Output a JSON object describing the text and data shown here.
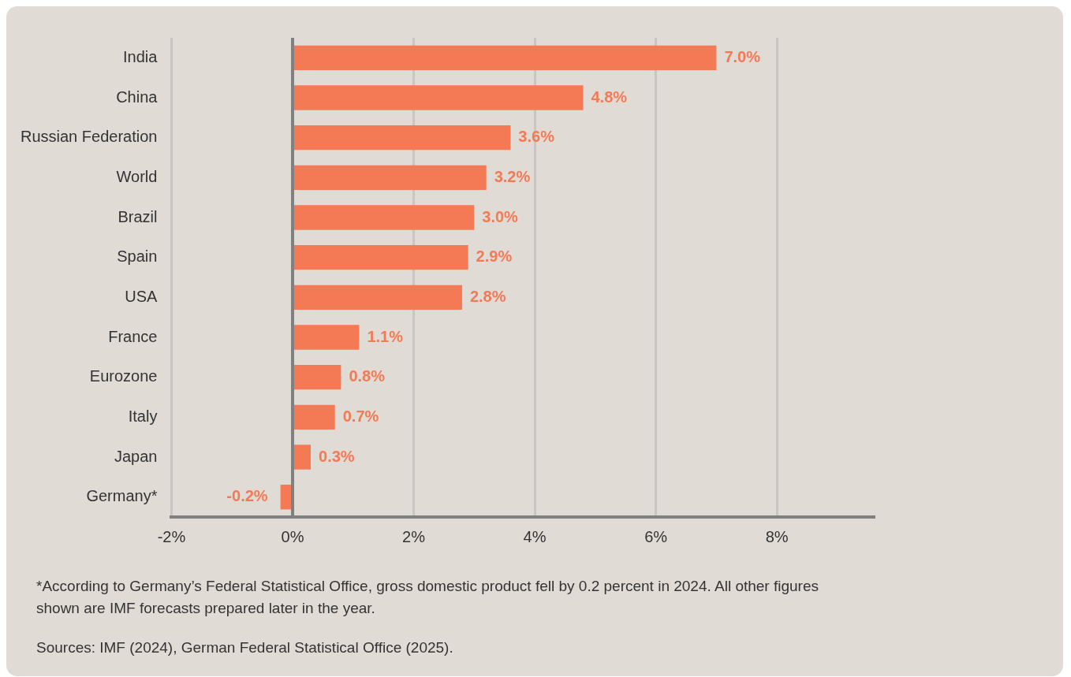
{
  "chart_data": {
    "type": "bar",
    "orientation": "horizontal",
    "categories": [
      "India",
      "China",
      "Russian Federation",
      "World",
      "Brazil",
      "Spain",
      "USA",
      "France",
      "Eurozone",
      "Italy",
      "Japan",
      "Germany*"
    ],
    "values": [
      7.0,
      4.8,
      3.6,
      3.2,
      3.0,
      2.9,
      2.8,
      1.1,
      0.8,
      0.7,
      0.3,
      -0.2
    ],
    "value_labels": [
      "7.0%",
      "4.8%",
      "3.6%",
      "3.2%",
      "3.0%",
      "2.9%",
      "2.8%",
      "1.1%",
      "0.8%",
      "0.7%",
      "0.3%",
      "-0.2%"
    ],
    "color": "#f47a55",
    "xlim": [
      -2,
      9.6
    ],
    "xticks": [
      {
        "value": -2,
        "label": "-2%"
      },
      {
        "value": 0,
        "label": "0%"
      },
      {
        "value": 2,
        "label": "2%"
      },
      {
        "value": 4,
        "label": "4%"
      },
      {
        "value": 6,
        "label": "6%"
      },
      {
        "value": 8,
        "label": "8%"
      }
    ],
    "grid": "x",
    "ref_lines": [
      {
        "axis": "x",
        "value": 0,
        "color": "#808080"
      }
    ],
    "annotations": [
      "*According to Germany’s Federal Statistical Office, gross domestic product fell by 0.2 percent in 2024. All other figures shown are IMF forecasts prepared later in the year.",
      "Sources: IMF (2024), German Federal Statistical Office (2025)."
    ]
  }
}
